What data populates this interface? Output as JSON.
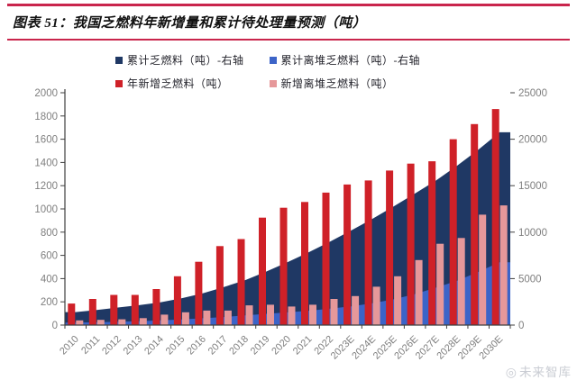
{
  "header": {
    "title": "图表 51：我国乏燃料年新增量和累计待处理量预测（吨）"
  },
  "watermark": {
    "logo": "◎",
    "text": "未来智库"
  },
  "colors": {
    "navy": "#1F3864",
    "blue": "#3C64C8",
    "red": "#CF2128",
    "pink": "#E6989A",
    "rule": "#C9254C",
    "axis_line": "#3F3F3F",
    "axis_text": "#7F7F7F",
    "legend_text": "#24242C",
    "watermark": "#C9CCD3"
  },
  "chart_data": {
    "type": "combo-area-bar",
    "categories": [
      "2010",
      "2011",
      "2012",
      "2013",
      "2014",
      "2015",
      "2016",
      "2017",
      "2018",
      "2019",
      "2020",
      "2021",
      "2022",
      "2023E",
      "2024E",
      "2025E",
      "2026E",
      "2027E",
      "2028E",
      "2029E",
      "2030E"
    ],
    "series": [
      {
        "name": "累计乏燃料（吨）-右轴",
        "type": "area",
        "axis": "right",
        "color_key": "navy",
        "values": [
          1400,
          1625,
          1885,
          2145,
          2455,
          2875,
          3420,
          4100,
          4840,
          5765,
          6775,
          7835,
          8975,
          10185,
          11430,
          12760,
          14150,
          15560,
          17160,
          18890,
          20750
        ]
      },
      {
        "name": "累计离堆乏燃料（吨）-右轴",
        "type": "area",
        "axis": "right",
        "color_key": "blue",
        "values": [
          260,
          305,
          355,
          415,
          505,
          615,
          740,
          865,
          1035,
          1210,
          1370,
          1545,
          1770,
          2020,
          2350,
          2770,
          3330,
          4030,
          4780,
          5730,
          6760
        ]
      },
      {
        "name": "年新增乏燃料（吨）",
        "type": "bar",
        "axis": "left",
        "color_key": "red",
        "values": [
          185,
          225,
          260,
          260,
          310,
          420,
          545,
          680,
          740,
          925,
          1010,
          1060,
          1140,
          1210,
          1245,
          1330,
          1390,
          1410,
          1600,
          1730,
          1860
        ]
      },
      {
        "name": "新增离堆乏燃料（吨）",
        "type": "bar",
        "axis": "left",
        "color_key": "pink",
        "values": [
          40,
          45,
          50,
          60,
          90,
          110,
          125,
          125,
          170,
          175,
          160,
          175,
          225,
          250,
          330,
          420,
          560,
          700,
          750,
          950,
          1030
        ]
      }
    ],
    "left_axis": {
      "min": 0,
      "max": 2000,
      "step": 200
    },
    "right_axis": {
      "min": 0,
      "max": 25000,
      "step": 5000
    },
    "legend_position": "top",
    "grid": false
  }
}
